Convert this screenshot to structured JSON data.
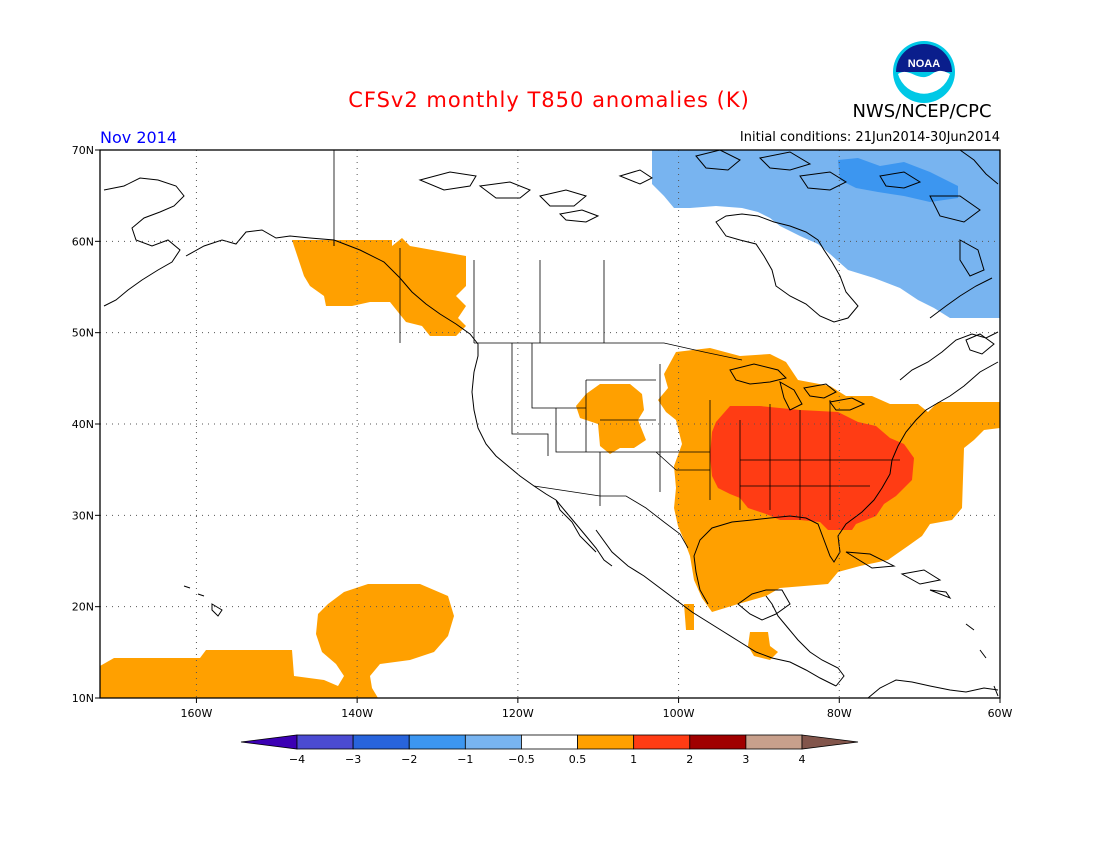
{
  "title": "CFSv2 monthly T850 anomalies (K)",
  "agency": "NWS/NCEP/CPC",
  "logo_text": "NOAA",
  "valid_month": "Nov 2014",
  "initial_conditions": "Initial conditions: 21Jun2014-30Jun2014",
  "map": {
    "lon_range": [
      -172,
      -60
    ],
    "lat_range": [
      10,
      70
    ],
    "lon_ticks": [
      "160W",
      "140W",
      "120W",
      "100W",
      "80W",
      "60W"
    ],
    "lat_ticks": [
      "10N",
      "20N",
      "30N",
      "40N",
      "50N",
      "60N",
      "70N"
    ],
    "grid": true
  },
  "colorbar": {
    "labels": [
      "−4",
      "−3",
      "−2",
      "−1",
      "−0.5",
      "0.5",
      "1",
      "2",
      "3",
      "4"
    ],
    "colors": [
      "#3c00b4",
      "#4b4bd2",
      "#2864dc",
      "#3c96f0",
      "#78b4f0",
      "#ffffff",
      "#ffa000",
      "#ff3c14",
      "#a00000",
      "#c8a08c",
      "#82554b"
    ]
  },
  "anomaly_regions": [
    {
      "name": "Alaska Panhandle / Gulf of Alaska warm",
      "category": "0.5 to 1"
    },
    {
      "name": "Eastern and central US warm",
      "category": "0.5 to 1"
    },
    {
      "name": "Southeastern US core warm",
      "category": "1 to 2"
    },
    {
      "name": "Subtropical Pacific warm",
      "category": "0.5 to 1"
    },
    {
      "name": "Hudson Bay / Labrador cool",
      "category": "-1 to -0.5"
    },
    {
      "name": "Hudson Bay core cool",
      "category": "-2 to -1"
    }
  ]
}
